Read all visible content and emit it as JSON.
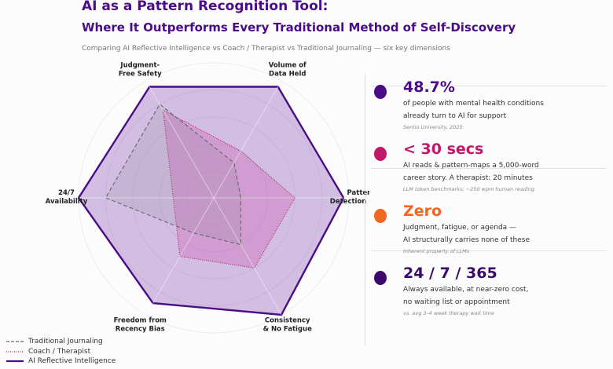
{
  "title_line1": "AI as a Pattern Recognition Tool:",
  "title_line2": "Where It Outperforms Every Traditional Method of Self-Discovery",
  "subtitle": "Comparing AI Reflective Intelligence vs Coach / Therapist vs Traditional Journaling — six key dimensions",
  "chart_data": {
    "type": "radar",
    "axes": [
      "Pattern\nDetection Speed",
      "Volume of\nData Held",
      "Judgment-\nFree Safety",
      "24/7\nAvailability",
      "Freedom from\nRecency Bias",
      "Consistency\n& No Fatigue"
    ],
    "rlim": [
      0,
      10
    ],
    "grid": true,
    "legend_placement": "bottom-left",
    "series": [
      {
        "name": "Traditional Journaling",
        "values": [
          2,
          3,
          8,
          8,
          3,
          4
        ],
        "color": "#666666",
        "style": "dashed"
      },
      {
        "name": "Coach / Therapist",
        "values": [
          6,
          4,
          7.5,
          3,
          5,
          6
        ],
        "color": "#c2185b",
        "style": "dotted"
      },
      {
        "name": "AI Reflective Intelligence",
        "values": [
          9.6,
          9.5,
          9.5,
          10,
          9,
          10
        ],
        "color": "#4a0d86",
        "style": "solid"
      }
    ]
  },
  "stats": [
    {
      "value": "48.7%",
      "line1": "of people with mental health conditions",
      "line2": "already turn to AI for support",
      "source": "Sentio University, 2025",
      "color": "#4a0d86"
    },
    {
      "value": "< 30 secs",
      "line1": "AI reads & pattern-maps a 5,000-word",
      "line2": "career story. A therapist: 20 minutes",
      "source": "LLM token benchmarks; ~250 wpm human reading",
      "color": "#c2186b"
    },
    {
      "value": "Zero",
      "line1": "Judgment, fatigue, or agenda —",
      "line2": "AI structurally carries none of these",
      "source": "Inherent property of LLMs",
      "color": "#f26522"
    },
    {
      "value": "24 / 7 / 365",
      "line1": "Always available, at near-zero cost,",
      "line2": "no waiting list or appointment",
      "source": "vs. avg 3–4 week therapy wait time",
      "color": "#3b0a6b"
    }
  ]
}
